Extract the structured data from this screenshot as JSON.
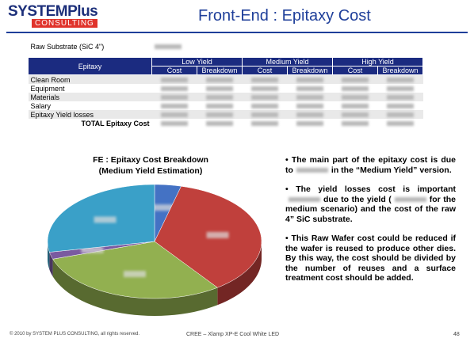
{
  "header": {
    "logo_top": "SYSTEMPlus",
    "logo_bottom": "CONSULTING",
    "title": "Front-End : Epitaxy Cost"
  },
  "table": {
    "substrate": "Raw Substrate (SiC 4\")",
    "corner": "Epitaxy",
    "groups": [
      "Low Yield",
      "Medium Yield",
      "High Yield"
    ],
    "subheads": [
      "Cost",
      "Breakdown",
      "Cost",
      "Breakdown",
      "Cost",
      "Breakdown"
    ],
    "rows": [
      "Clean Room",
      "Equipment",
      "Materials",
      "Salary",
      "Epitaxy Yield losses",
      "TOTAL Epitaxy Cost"
    ]
  },
  "chart_data": {
    "type": "pie",
    "title": "FE : Epitaxy Cost Breakdown",
    "subtitle": "(Medium Yield Estimation)",
    "values": [
      4,
      36,
      30,
      2,
      28
    ],
    "colors": [
      "#4472c4",
      "#c0403c",
      "#92b050",
      "#7a5aa0",
      "#3aa0c8"
    ]
  },
  "bullets": [
    [
      "• The main part of the epitaxy cost is due to",
      "in the “Medium Yield” version."
    ],
    [
      "• The yield losses cost is important",
      "due to the yield (",
      "for the medium scenario) and the cost of the raw 4” SiC substrate."
    ],
    [
      "• This Raw Wafer cost could be reduced if the wafer is reused to produce other dies. By this way, the cost should be divided by the number of reuses and a surface treatment cost should be added."
    ]
  ],
  "footer": {
    "copyright": "© 2010 by SYSTEM PLUS CONSULTING, all rights reserved.",
    "product": "CREE – Xlamp XP-E Cool White LED",
    "page": "48"
  }
}
